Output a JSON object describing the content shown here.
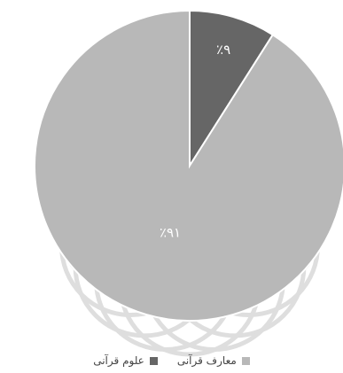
{
  "chart_data": {
    "type": "pie",
    "slices": [
      {
        "name": "علوم قرآنی",
        "value": 9,
        "label": "٪۹",
        "color": "#666666"
      },
      {
        "name": "معارف قرآنی",
        "value": 91,
        "label": "٪۹۱",
        "color": "#b8b8b8"
      }
    ],
    "legend_position": "bottom"
  }
}
